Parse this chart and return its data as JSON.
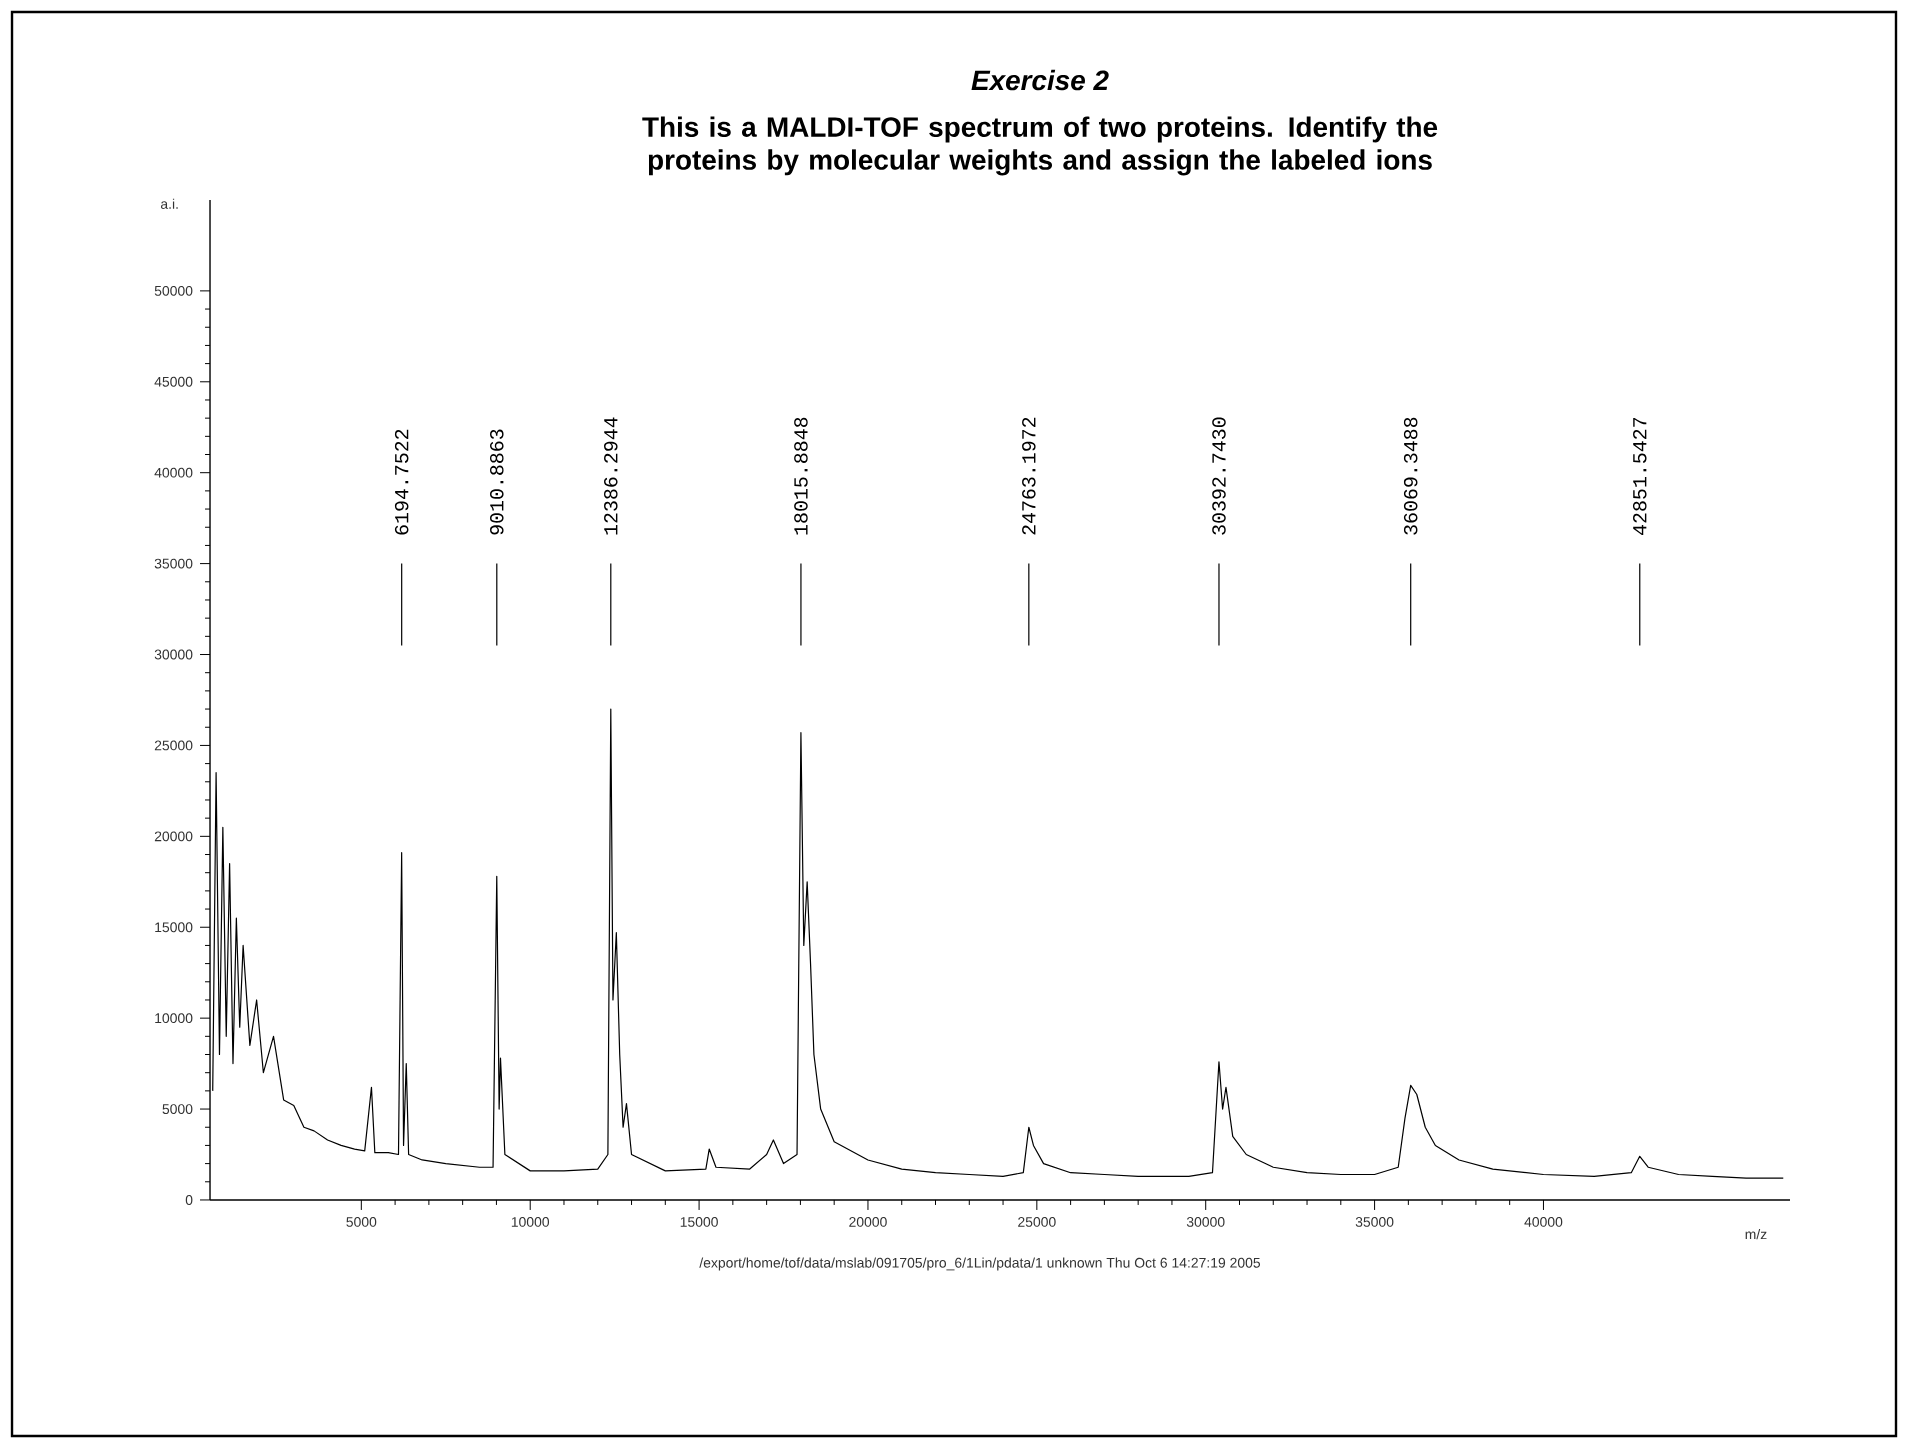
{
  "chart_data": {
    "type": "line",
    "title": "Exercise 2",
    "subtitle": "This is a MALDI-TOF spectrum of two proteins. Identify the proteins by molecular weights and assign the labeled ions",
    "xlabel": "m/z",
    "ylabel": "a.i.",
    "color": "#000000",
    "xlim": [
      520,
      47300
    ],
    "ylim": [
      0,
      55000
    ],
    "xticks": [
      5000,
      10000,
      15000,
      20000,
      25000,
      30000,
      35000,
      40000
    ],
    "yticks": [
      0,
      5000,
      10000,
      15000,
      20000,
      25000,
      30000,
      35000,
      40000,
      45000,
      50000
    ],
    "x": [
      600,
      700,
      800,
      900,
      1000,
      1100,
      1200,
      1300,
      1400,
      1500,
      1700,
      1900,
      2100,
      2400,
      2700,
      3000,
      3300,
      3600,
      4000,
      4400,
      4800,
      5100,
      5300,
      5400,
      5800,
      6100,
      6194,
      6250,
      6330,
      6400,
      6800,
      7500,
      8500,
      8900,
      9010,
      9080,
      9120,
      9250,
      10000,
      11000,
      12000,
      12300,
      12386,
      12450,
      12550,
      12650,
      12750,
      12850,
      13000,
      14000,
      15200,
      15300,
      15500,
      16500,
      17000,
      17200,
      17500,
      17900,
      18015,
      18100,
      18200,
      18300,
      18400,
      18600,
      19000,
      20000,
      21000,
      22000,
      23000,
      24000,
      24600,
      24763,
      24900,
      25200,
      26000,
      27000,
      28000,
      29500,
      30200,
      30392,
      30500,
      30600,
      30800,
      31200,
      32000,
      33000,
      34000,
      35000,
      35700,
      35900,
      36069,
      36250,
      36500,
      36800,
      37500,
      38500,
      40000,
      41500,
      42600,
      42851,
      43100,
      44000,
      45000,
      46000,
      47100
    ],
    "values": [
      6000,
      23500,
      8000,
      20500,
      9000,
      18500,
      7500,
      15500,
      9500,
      14000,
      8500,
      11000,
      7000,
      9000,
      5500,
      5200,
      4000,
      3800,
      3300,
      3000,
      2800,
      2700,
      6200,
      2600,
      2600,
      2500,
      19100,
      3000,
      7500,
      2500,
      2200,
      2000,
      1800,
      1800,
      17800,
      5000,
      7800,
      2500,
      1600,
      1600,
      1700,
      2500,
      27000,
      11000,
      14700,
      8000,
      4000,
      5300,
      2500,
      1600,
      1700,
      2800,
      1800,
      1700,
      2500,
      3300,
      2000,
      2500,
      25700,
      14000,
      17500,
      13000,
      8000,
      5000,
      3200,
      2200,
      1700,
      1500,
      1400,
      1300,
      1500,
      4000,
      3000,
      2000,
      1500,
      1400,
      1300,
      1300,
      1500,
      7600,
      5000,
      6200,
      3500,
      2500,
      1800,
      1500,
      1400,
      1400,
      1800,
      4500,
      6300,
      5800,
      4000,
      3000,
      2200,
      1700,
      1400,
      1300,
      1500,
      2400,
      1800,
      1400,
      1300,
      1200,
      1200
    ],
    "ref_lines": [
      {
        "axis": "x",
        "value": 6194.7522,
        "label": "6194.7522"
      },
      {
        "axis": "x",
        "value": 9010.8863,
        "label": "9010.8863"
      },
      {
        "axis": "x",
        "value": 12386.2944,
        "label": "12386.2944"
      },
      {
        "axis": "x",
        "value": 18015.8848,
        "label": "18015.8848"
      },
      {
        "axis": "x",
        "value": 24763.1972,
        "label": "24763.1972"
      },
      {
        "axis": "x",
        "value": 30392.743,
        "label": "30392.7430"
      },
      {
        "axis": "x",
        "value": 36069.3488,
        "label": "36069.3488"
      },
      {
        "axis": "x",
        "value": 42851.5427,
        "label": "42851.5427"
      }
    ],
    "annotations": [
      "/export/home/tof/data/mslab/091705/pro_6/1Lin/pdata/1   unknown   Thu Oct  6 14:27:19 2005"
    ]
  }
}
